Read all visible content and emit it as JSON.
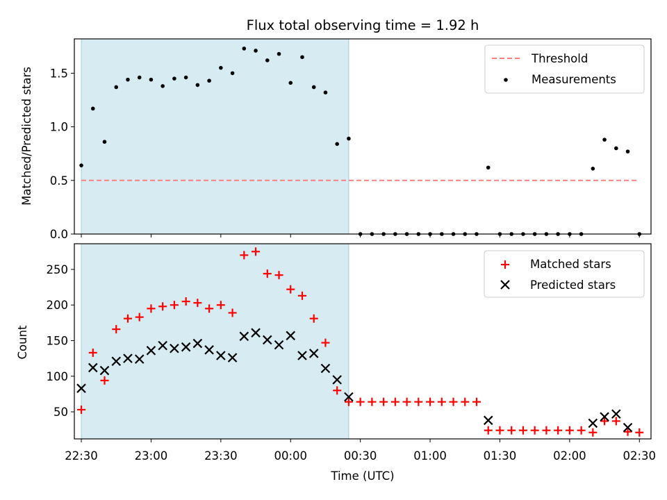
{
  "chart_data": {
    "title": "Flux total observing time = 1.92 h",
    "xlabel": "Time (UTC)",
    "x_ticks": [
      "22:30",
      "23:00",
      "23:30",
      "00:00",
      "00:30",
      "01:00",
      "01:30",
      "02:00",
      "02:30"
    ],
    "x_range": [
      "22:27",
      "02:35"
    ],
    "shaded_interval": [
      "22:30",
      "00:25"
    ],
    "shade_color": "#add8e6",
    "panels": [
      {
        "type": "scatter",
        "ylabel": "Matched/Predicted stars",
        "ylim": [
          0,
          1.82
        ],
        "y_ticks": [
          "0.0",
          "0.5",
          "1.0",
          "1.5"
        ],
        "y_tick_values": [
          0,
          0.5,
          1.0,
          1.5
        ],
        "legend_position": "upper right",
        "threshold": {
          "name": "Threshold",
          "value": 0.5,
          "x_range": [
            "22:30",
            "02:30"
          ],
          "color": "#ff7f7f"
        },
        "series": [
          {
            "name": "Measurements",
            "marker": "dot",
            "color": "#000000",
            "x": [
              "22:30",
              "22:35",
              "22:40",
              "22:45",
              "22:50",
              "22:55",
              "23:00",
              "23:05",
              "23:10",
              "23:15",
              "23:20",
              "23:25",
              "23:30",
              "23:35",
              "23:40",
              "23:45",
              "23:50",
              "23:55",
              "00:00",
              "00:05",
              "00:10",
              "00:15",
              "00:20",
              "00:25",
              "00:30",
              "00:35",
              "00:40",
              "00:45",
              "00:50",
              "00:55",
              "01:00",
              "01:05",
              "01:10",
              "01:15",
              "01:20",
              "01:25",
              "01:30",
              "01:35",
              "01:40",
              "01:45",
              "01:50",
              "01:55",
              "02:00",
              "02:05",
              "02:10",
              "02:15",
              "02:20",
              "02:25",
              "02:30"
            ],
            "y": [
              0.64,
              1.17,
              0.86,
              1.37,
              1.44,
              1.46,
              1.44,
              1.38,
              1.45,
              1.46,
              1.39,
              1.43,
              1.55,
              1.5,
              1.73,
              1.71,
              1.62,
              1.68,
              1.41,
              1.65,
              1.37,
              1.32,
              0.84,
              0.89,
              0,
              0,
              0,
              0,
              0,
              0,
              0,
              0,
              0,
              0,
              0,
              0.62,
              0,
              0,
              0,
              0,
              0,
              0,
              0,
              0,
              0.61,
              0.88,
              0.8,
              0.77,
              0
            ]
          }
        ]
      },
      {
        "type": "scatter",
        "ylabel": "Count",
        "ylim": [
          12,
          286
        ],
        "y_ticks": [
          "50",
          "100",
          "150",
          "200",
          "250"
        ],
        "y_tick_values": [
          50,
          100,
          150,
          200,
          250
        ],
        "legend_position": "upper right",
        "series": [
          {
            "name": "Matched stars",
            "marker": "plus",
            "color": "#ff0000",
            "x": [
              "22:30",
              "22:35",
              "22:40",
              "22:45",
              "22:50",
              "22:55",
              "23:00",
              "23:05",
              "23:10",
              "23:15",
              "23:20",
              "23:25",
              "23:30",
              "23:35",
              "23:40",
              "23:45",
              "23:50",
              "23:55",
              "00:00",
              "00:05",
              "00:10",
              "00:15",
              "00:20",
              "00:25",
              "00:30",
              "00:35",
              "00:40",
              "00:45",
              "00:50",
              "00:55",
              "01:00",
              "01:05",
              "01:10",
              "01:15",
              "01:20",
              "01:25",
              "01:30",
              "01:35",
              "01:40",
              "01:45",
              "01:50",
              "01:55",
              "02:00",
              "02:05",
              "02:10",
              "02:15",
              "02:20",
              "02:25",
              "02:30"
            ],
            "y": [
              53,
              133,
              94,
              166,
              181,
              183,
              195,
              198,
              200,
              205,
              203,
              195,
              200,
              189,
              270,
              275,
              244,
              242,
              222,
              213,
              181,
              147,
              80,
              64,
              64,
              64,
              64,
              64,
              64,
              64,
              64,
              64,
              64,
              64,
              64,
              24,
              24,
              24,
              24,
              24,
              24,
              24,
              24,
              24,
              21,
              37,
              37,
              22,
              21
            ]
          },
          {
            "name": "Predicted stars",
            "marker": "x",
            "color": "#000000",
            "x": [
              "22:30",
              "22:35",
              "22:40",
              "22:45",
              "22:50",
              "22:55",
              "23:00",
              "23:05",
              "23:10",
              "23:15",
              "23:20",
              "23:25",
              "23:30",
              "23:35",
              "23:40",
              "23:45",
              "23:50",
              "23:55",
              "00:00",
              "00:05",
              "00:10",
              "00:15",
              "00:20",
              "00:25",
              "01:25",
              "02:10",
              "02:15",
              "02:20",
              "02:25"
            ],
            "y": [
              83,
              112,
              108,
              121,
              125,
              124,
              136,
              143,
              139,
              141,
              146,
              137,
              129,
              126,
              156,
              161,
              151,
              144,
              157,
              129,
              132,
              111,
              95,
              71,
              38,
              34,
              43,
              47,
              28
            ]
          }
        ]
      }
    ]
  }
}
